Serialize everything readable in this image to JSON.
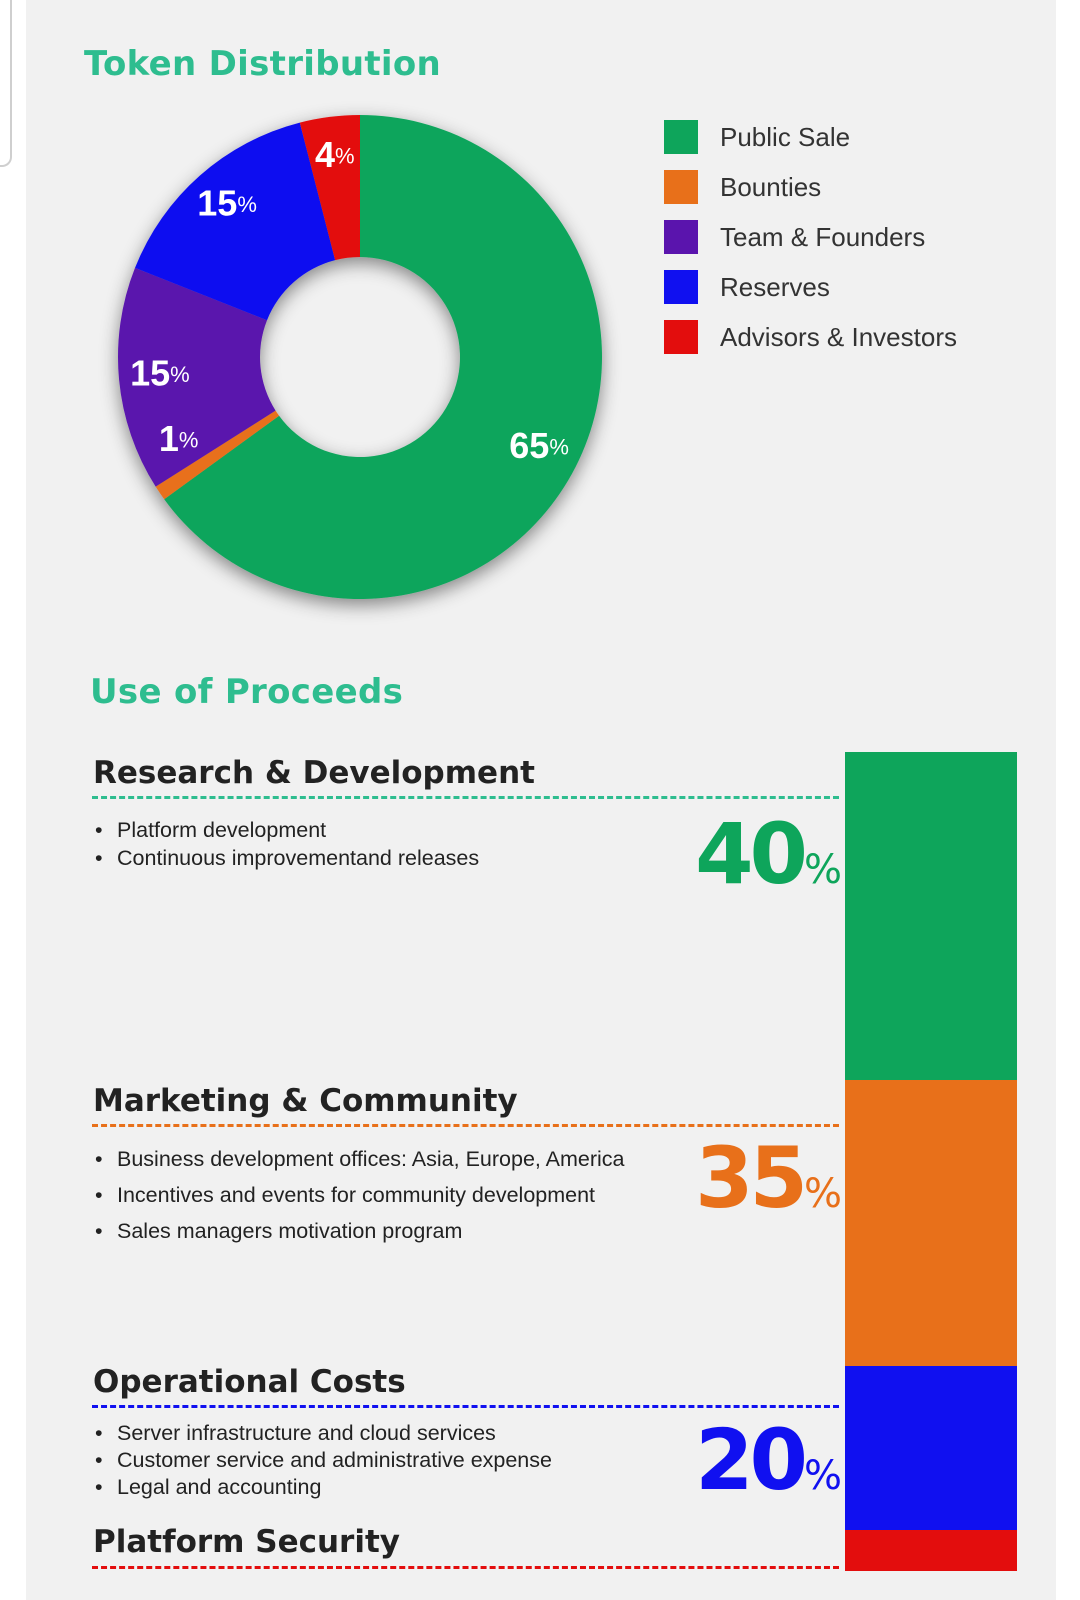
{
  "colors": {
    "title": "#2ebd8f",
    "public_sale": "#0ea55b",
    "bounties": "#e8701a",
    "team": "#5a14ad",
    "reserves": "#1010f0",
    "advisors": "#e30d0d"
  },
  "token_distribution": {
    "title": "Token Distribution",
    "legend": [
      {
        "label": "Public Sale",
        "color": "#0ea55b"
      },
      {
        "label": "Bounties",
        "color": "#e8701a"
      },
      {
        "label": "Team & Founders",
        "color": "#5a14ad"
      },
      {
        "label": "Reserves",
        "color": "#1010f0"
      },
      {
        "label": "Advisors & Investors",
        "color": "#e30d0d"
      }
    ]
  },
  "use_of_proceeds": {
    "title": "Use of Proceeds",
    "categories": [
      {
        "title": "Research & Development",
        "percent": "40",
        "color": "#0ea55b",
        "bullets": [
          "Platform development",
          "Continuous improvementand releases"
        ]
      },
      {
        "title": "Marketing & Community",
        "percent": "35",
        "color": "#e8701a",
        "bullets": [
          "Business development offices: Asia, Europe, America",
          "Incentives and events for community development",
          "Sales managers motivation program"
        ]
      },
      {
        "title": "Operational Costs",
        "percent": "20",
        "color": "#1010f0",
        "bullets": [
          "Server infrastructure and cloud services",
          "Customer service and administrative expense",
          "Legal and accounting"
        ]
      },
      {
        "title": "Platform Security",
        "color": "#e30d0d",
        "bullets": []
      }
    ]
  },
  "chart_data": [
    {
      "type": "pie",
      "title": "Token Distribution",
      "categories": [
        "Public Sale",
        "Bounties",
        "Team & Founders",
        "Reserves",
        "Advisors & Investors"
      ],
      "values": [
        65,
        1,
        15,
        15,
        4
      ],
      "unit": "%",
      "donut": true,
      "legend_placement": "right"
    },
    {
      "type": "bar",
      "stacked": true,
      "title": "Use of Proceeds",
      "categories": [
        "Research & Development",
        "Marketing & Community",
        "Operational Costs",
        "Platform Security"
      ],
      "values": [
        40,
        35,
        20,
        5
      ],
      "unit": "%"
    }
  ]
}
